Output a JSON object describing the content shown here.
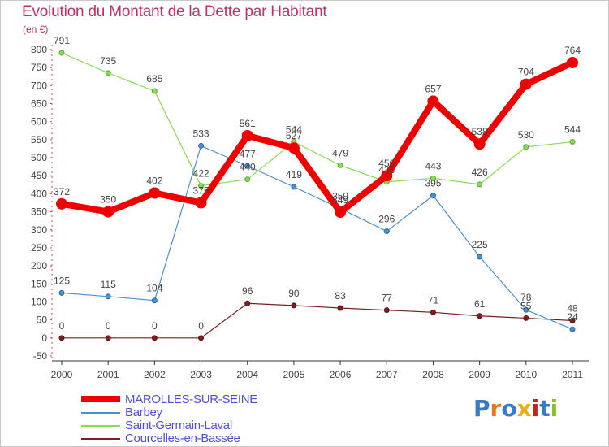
{
  "title": "Evolution du Montant de la Dette par Habitant",
  "unit_label": "(en €)",
  "logo_text": "Proxiti",
  "chart_data": {
    "type": "line",
    "title": "Evolution du Montant de la Dette par Habitant",
    "ylabel": "(en €)",
    "xlabel": "",
    "x": [
      "2000",
      "2001",
      "2002",
      "2003",
      "2004",
      "2005",
      "2006",
      "2007",
      "2008",
      "2009",
      "2010",
      "2011"
    ],
    "y_ticks": [
      "-50",
      "0",
      "50",
      "100",
      "150",
      "200",
      "250",
      "300",
      "350",
      "400",
      "450",
      "500",
      "550",
      "600",
      "650",
      "700",
      "750",
      "800"
    ],
    "ylim": [
      -50,
      800
    ],
    "grid": false,
    "legend_position": "bottom-left",
    "series": [
      {
        "name": "MAROLLES-SUR-SEINE",
        "color": "#ee0000",
        "values": [
          372,
          350,
          402,
          375,
          561,
          527,
          349,
          450,
          657,
          538,
          704,
          764
        ],
        "labels": [
          "372",
          "350",
          "402",
          "375",
          "561",
          "527",
          "349",
          "450",
          "657",
          "538",
          "704",
          "764"
        ]
      },
      {
        "name": "Barbey",
        "color": "#4a90d0",
        "values": [
          125,
          115,
          104,
          533,
          477,
          419,
          359,
          296,
          395,
          225,
          78,
          24
        ],
        "labels": [
          "125",
          "115",
          "104",
          "533",
          "477",
          "419",
          "359",
          "296",
          "395",
          "225",
          "78",
          "24"
        ]
      },
      {
        "name": "Saint-Germain-Laval",
        "color": "#88dd55",
        "values": [
          791,
          735,
          685,
          422,
          440,
          544,
          479,
          433,
          443,
          426,
          530,
          544
        ],
        "labels": [
          "791",
          "735",
          "685",
          "422",
          "440",
          "544",
          "479",
          "433",
          "443",
          "426",
          "530",
          "544"
        ]
      },
      {
        "name": "Courcelles-en-Bassée",
        "color": "#7a2020",
        "values": [
          0,
          0,
          0,
          0,
          96,
          90,
          83,
          77,
          71,
          61,
          55,
          48
        ],
        "labels": [
          "0",
          "0",
          "0",
          "0",
          "96",
          "90",
          "83",
          "77",
          "71",
          "61",
          "55",
          "48"
        ]
      }
    ]
  }
}
